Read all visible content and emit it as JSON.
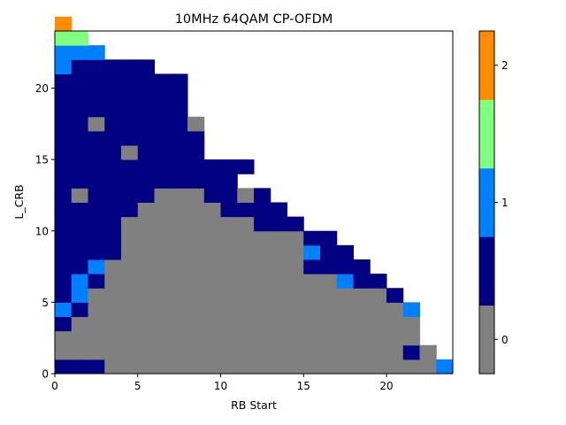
{
  "chart_data": {
    "type": "heatmap",
    "title": "10MHz 64QAM CP-OFDM",
    "xlabel": "RB Start",
    "ylabel": "L_CRB",
    "xlim": [
      0,
      24
    ],
    "ylim": [
      0,
      24
    ],
    "x_ticks": [
      "0",
      "5",
      "10",
      "15",
      "20"
    ],
    "y_ticks": [
      "0",
      "5",
      "10",
      "15",
      "20"
    ],
    "colorbar": {
      "ticks": [
        "0",
        "1",
        "2"
      ],
      "levels": [
        0,
        0.5,
        1,
        1.5,
        2
      ],
      "colors": [
        "#808080",
        "#000080",
        "#0080ff",
        "#80ff80",
        "#ff8c00"
      ]
    },
    "grid": false,
    "rows": [
      "BBB00000000000000000000C",
      "000000000000000000000B0",
      "0000000000000000000000",
      "B000000000000000000000",
      "CB0000000000000000000C",
      "BC000000000000000000B",
      "BCB00000000000000CBB",
      "BBC000000000000BBBB",
      "BBBB00000000000CBB",
      "BBBB00000000000BB",
      "BBBB00000000BBB",
      "BBBBB00000BBBB",
      "B0BBBB000BB0B",
      "BBBBBBBBBBB",
      "BBBBBBBBBBBB",
      "BBBB0BBBB",
      "BBBBBBBBB",
      "BB0BBBBB0",
      "BBBBBBBB",
      "BBBBBBBB",
      "BBBBBBBB",
      "CBBBBB",
      "CCC",
      "DD",
      "E"
    ],
    "legend": {
      "0": "0",
      "B": "0.5",
      "C": "1",
      "D": "1.5",
      "E": "2"
    }
  }
}
